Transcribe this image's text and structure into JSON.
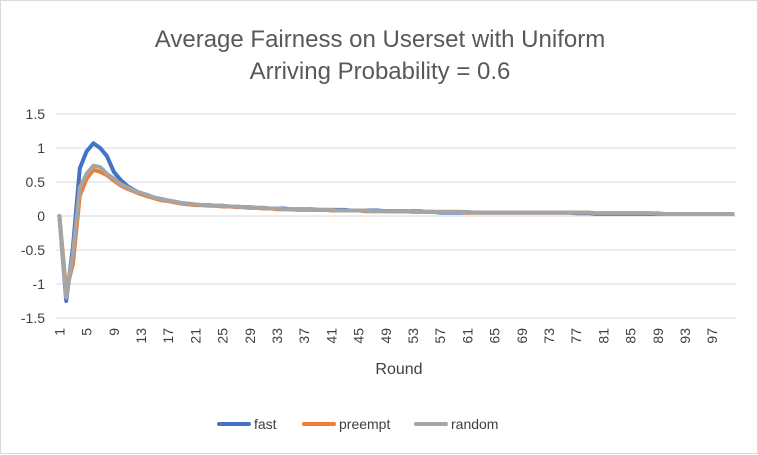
{
  "chart_data": {
    "type": "line",
    "title_line1": "Average Fairness on Userset with Uniform",
    "title_line2": "Arriving Probability = 0.6",
    "xlabel": "Round",
    "ylabel": "",
    "ylim": [
      -1.5,
      1.5
    ],
    "y_ticks": [
      "1.5",
      "1",
      "0.5",
      "0",
      "-0.5",
      "-1",
      "-1.5"
    ],
    "x_tick_labels": [
      "1",
      "5",
      "9",
      "13",
      "17",
      "21",
      "25",
      "29",
      "33",
      "37",
      "41",
      "45",
      "49",
      "53",
      "57",
      "61",
      "65",
      "69",
      "73",
      "77",
      "81",
      "85",
      "89",
      "93",
      "97"
    ],
    "grid": "horizontal",
    "legend_position": "bottom",
    "series": [
      {
        "name": "fast",
        "color": "#4472c4",
        "values": [
          0,
          -1.25,
          -0.45,
          0.7,
          0.95,
          1.07,
          1.0,
          0.88,
          0.65,
          0.53,
          0.44,
          0.38,
          0.33,
          0.3,
          0.26,
          0.24,
          0.22,
          0.21,
          0.19,
          0.18,
          0.17,
          0.16,
          0.16,
          0.15,
          0.15,
          0.14,
          0.14,
          0.13,
          0.13,
          0.12,
          0.12,
          0.11,
          0.11,
          0.11,
          0.1,
          0.1,
          0.1,
          0.1,
          0.09,
          0.09,
          0.09,
          0.09,
          0.09,
          0.08,
          0.08,
          0.08,
          0.08,
          0.08,
          0.07,
          0.07,
          0.07,
          0.07,
          0.07,
          0.07,
          0.06,
          0.06,
          0.05,
          0.05,
          0.05,
          0.05,
          0.05,
          0.05,
          0.05,
          0.05,
          0.05,
          0.05,
          0.05,
          0.05,
          0.05,
          0.05,
          0.05,
          0.05,
          0.05,
          0.05,
          0.05,
          0.05,
          0.04,
          0.04,
          0.04,
          0.03,
          0.03,
          0.03,
          0.03,
          0.03,
          0.03,
          0.03,
          0.03,
          0.03,
          0.03,
          0.03,
          0.03,
          0.03,
          0.03,
          0.03,
          0.03,
          0.03,
          0.03,
          0.03,
          0.03,
          0.03
        ]
      },
      {
        "name": "preempt",
        "color": "#ed7d31",
        "values": [
          0,
          -1.1,
          -0.7,
          0.3,
          0.55,
          0.68,
          0.65,
          0.6,
          0.52,
          0.45,
          0.4,
          0.36,
          0.32,
          0.29,
          0.26,
          0.23,
          0.22,
          0.2,
          0.18,
          0.17,
          0.16,
          0.16,
          0.15,
          0.15,
          0.14,
          0.14,
          0.13,
          0.13,
          0.12,
          0.12,
          0.11,
          0.11,
          0.1,
          0.1,
          0.1,
          0.09,
          0.09,
          0.09,
          0.09,
          0.09,
          0.08,
          0.08,
          0.08,
          0.08,
          0.08,
          0.07,
          0.07,
          0.07,
          0.07,
          0.07,
          0.07,
          0.07,
          0.06,
          0.06,
          0.06,
          0.06,
          0.06,
          0.06,
          0.06,
          0.06,
          0.05,
          0.05,
          0.05,
          0.05,
          0.05,
          0.05,
          0.05,
          0.05,
          0.05,
          0.05,
          0.05,
          0.05,
          0.05,
          0.05,
          0.05,
          0.05,
          0.05,
          0.05,
          0.05,
          0.04,
          0.04,
          0.04,
          0.04,
          0.04,
          0.04,
          0.04,
          0.04,
          0.04,
          0.03,
          0.03,
          0.03,
          0.03,
          0.03,
          0.03,
          0.03,
          0.03,
          0.03,
          0.03,
          0.03,
          0.03
        ]
      },
      {
        "name": "random",
        "color": "#a5a5a5",
        "values": [
          0,
          -1.2,
          -0.55,
          0.42,
          0.62,
          0.74,
          0.72,
          0.62,
          0.55,
          0.47,
          0.42,
          0.37,
          0.34,
          0.31,
          0.27,
          0.25,
          0.23,
          0.21,
          0.19,
          0.18,
          0.17,
          0.16,
          0.16,
          0.15,
          0.15,
          0.14,
          0.14,
          0.13,
          0.13,
          0.12,
          0.12,
          0.11,
          0.11,
          0.1,
          0.1,
          0.1,
          0.1,
          0.09,
          0.09,
          0.09,
          0.09,
          0.08,
          0.08,
          0.08,
          0.08,
          0.08,
          0.07,
          0.07,
          0.07,
          0.07,
          0.07,
          0.07,
          0.06,
          0.06,
          0.06,
          0.06,
          0.06,
          0.06,
          0.06,
          0.06,
          0.06,
          0.05,
          0.05,
          0.05,
          0.05,
          0.05,
          0.05,
          0.05,
          0.05,
          0.05,
          0.05,
          0.05,
          0.05,
          0.05,
          0.05,
          0.05,
          0.05,
          0.05,
          0.05,
          0.04,
          0.04,
          0.04,
          0.04,
          0.04,
          0.04,
          0.04,
          0.04,
          0.04,
          0.04,
          0.03,
          0.03,
          0.03,
          0.03,
          0.03,
          0.03,
          0.03,
          0.03,
          0.03,
          0.03,
          0.03
        ]
      }
    ]
  }
}
